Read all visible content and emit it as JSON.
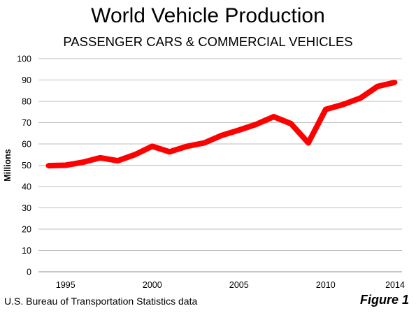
{
  "title": "World Vehicle Production",
  "subtitle": "PASSENGER CARS & COMMERCIAL VEHICLES",
  "source": "U.S. Bureau of Transportation Statistics data",
  "figure_label": "Figure 1",
  "chart_data": {
    "type": "line",
    "title": "World Vehicle Production",
    "subtitle": "PASSENGER CARS & COMMERCIAL VEHICLES",
    "xlabel": "",
    "ylabel": "Millions",
    "xlim": [
      1994,
      2014
    ],
    "ylim": [
      0,
      100
    ],
    "x_ticks": [
      1995,
      2000,
      2005,
      2010,
      2014
    ],
    "y_ticks": [
      0,
      10,
      20,
      30,
      40,
      50,
      60,
      70,
      80,
      90,
      100
    ],
    "grid": "horizontal",
    "legend": "none",
    "line_color": "#ff0000",
    "gridline_color": "#bfbfbf",
    "series": [
      {
        "x": [
          1994,
          1995,
          1996,
          1997,
          1998,
          1999,
          2000,
          2001,
          2002,
          2003,
          2004,
          2005,
          2006,
          2007,
          2008,
          2009,
          2010,
          2011,
          2012,
          2013,
          2014
        ],
        "values": [
          49.8,
          50.0,
          51.4,
          53.5,
          52.1,
          55.0,
          58.9,
          56.3,
          58.9,
          60.5,
          64.0,
          66.5,
          69.2,
          72.8,
          69.5,
          60.5,
          76.2,
          78.5,
          81.5,
          87.0,
          88.9
        ]
      }
    ]
  }
}
